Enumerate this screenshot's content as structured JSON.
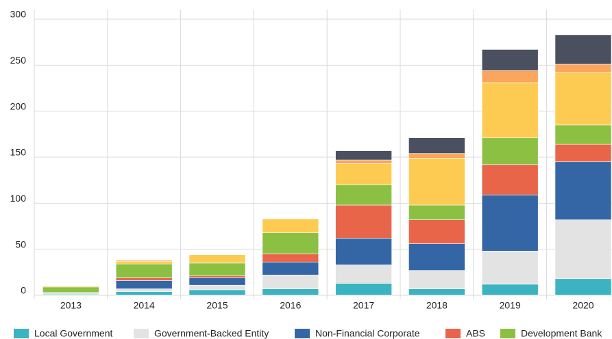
{
  "chart_data": {
    "type": "stacked_bar",
    "categories": [
      "2013",
      "2014",
      "2015",
      "2016",
      "2017",
      "2018",
      "2019",
      "2020"
    ],
    "series": [
      {
        "name": "Local Government",
        "color": "#3bb3c0",
        "values": [
          1,
          4,
          6,
          7,
          13,
          7,
          12,
          18
        ]
      },
      {
        "name": "Government-Backed Entity",
        "color": "#e3e3e3",
        "values": [
          2,
          3,
          5,
          15,
          20,
          20,
          36,
          64
        ]
      },
      {
        "name": "Non-Financial Corporate",
        "color": "#3466a6",
        "values": [
          0,
          9,
          8,
          14,
          29,
          29,
          61,
          63
        ]
      },
      {
        "name": "ABS",
        "color": "#e8654a",
        "values": [
          0,
          3,
          2,
          9,
          36,
          26,
          33,
          19
        ]
      },
      {
        "name": "Development Bank",
        "color": "#8cc043",
        "values": [
          6,
          15,
          14,
          23,
          22,
          16,
          29,
          21
        ]
      },
      {
        "color": "#fecb52",
        "values": [
          1,
          3,
          9,
          15,
          23,
          51,
          60,
          57
        ]
      },
      {
        "color": "#fba55d",
        "values": [
          0,
          1,
          0,
          0,
          4,
          5,
          13,
          9
        ]
      },
      {
        "color": "#4a5060",
        "values": [
          0,
          0,
          0,
          0,
          10,
          17,
          23,
          32
        ]
      }
    ],
    "ylim": [
      0,
      300
    ],
    "yticks": [
      0,
      50,
      100,
      150,
      200,
      250,
      300
    ],
    "grid": true
  }
}
